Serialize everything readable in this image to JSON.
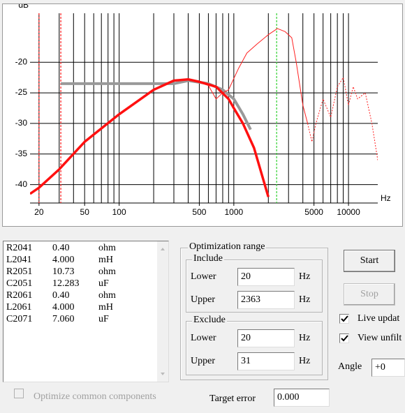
{
  "chart_data": {
    "type": "line",
    "xlabel": "Hz",
    "ylabel": "dB",
    "xlog": true,
    "xlim": [
      16.7,
      18000
    ],
    "ylim": [
      -43,
      -12
    ],
    "xticks": [
      20,
      50,
      100,
      500,
      1000,
      5000,
      10000
    ],
    "xgrid": [
      20,
      30,
      40,
      50,
      60,
      70,
      80,
      90,
      100,
      200,
      300,
      400,
      500,
      600,
      700,
      800,
      900,
      1000,
      2000,
      3000,
      4000,
      5000,
      6000,
      7000,
      8000,
      9000,
      10000
    ],
    "yticks": [
      -20,
      -25,
      -30,
      -35,
      -40
    ],
    "grid": true,
    "series": [
      {
        "color": "#999999",
        "width": 4,
        "dash": "none",
        "x": [
          31,
          100,
          200,
          300,
          400,
          600,
          800,
          1000,
          1200,
          1400
        ],
        "values": [
          -23.5,
          -23.5,
          -23.5,
          -23.5,
          -23,
          -23.5,
          -24.5,
          -26,
          -28.5,
          -31
        ]
      },
      {
        "color": "#ff2020",
        "width": 1,
        "dash": "none",
        "x": [
          500,
          600,
          700,
          800,
          900,
          1100,
          1300,
          1600,
          2000,
          2400,
          2800,
          3200,
          3500,
          4000,
          4400
        ],
        "values": [
          -23.3,
          -23.8,
          -26,
          -25,
          -24.5,
          -21,
          -18.5,
          -17,
          -15.5,
          -14.5,
          -15,
          -16,
          -20,
          -27,
          -30
        ]
      },
      {
        "color": "#ff2020",
        "width": 1,
        "dash": "2 2",
        "x": [
          4400,
          4800,
          5200,
          6000,
          7000,
          8000,
          9000,
          10000,
          11000,
          12000,
          14000,
          16000,
          18000
        ],
        "values": [
          -30,
          -33,
          -30,
          -26,
          -29,
          -24,
          -22.5,
          -27,
          -24,
          -26,
          -25,
          -30,
          -36
        ]
      },
      {
        "color": "#ff1010",
        "width": 3.5,
        "dash": "none",
        "x": [
          16.7,
          20,
          30,
          50,
          100,
          200,
          300,
          400,
          500,
          700,
          900,
          1000,
          1200,
          1500,
          2000
        ],
        "values": [
          -41.5,
          -40.5,
          -37.5,
          -33,
          -28.5,
          -24.5,
          -23,
          -22.8,
          -23.2,
          -24,
          -26,
          -27.5,
          -30,
          -34,
          -42
        ]
      }
    ],
    "markers": [
      {
        "source": "ui.optimization.exclude.lower.value",
        "color": "#ff2020"
      },
      {
        "source": "ui.optimization.exclude.upper.value",
        "color": "#ff2020"
      },
      {
        "source": "ui.optimization.include.upper.value",
        "color": "#30d030"
      }
    ]
  },
  "ui": {
    "components": [
      [
        "R2041",
        "0.40",
        "ohm"
      ],
      [
        "L2041",
        "4.000",
        "mH"
      ],
      [
        "R2051",
        "10.73",
        "ohm"
      ],
      [
        "C2051",
        "12.283",
        "uF"
      ],
      [
        "R2061",
        "0.40",
        "ohm"
      ],
      [
        "L2061",
        "4.000",
        "mH"
      ],
      [
        "C2071",
        "7.060",
        "uF"
      ]
    ],
    "optimization": {
      "title": "Optimization range",
      "include": {
        "title": "Include",
        "lower": {
          "label": "Lower",
          "value": "20",
          "unit": "Hz"
        },
        "upper": {
          "label": "Upper",
          "value": "2363",
          "unit": "Hz"
        }
      },
      "exclude": {
        "title": "Exclude",
        "lower": {
          "label": "Lower",
          "value": "20",
          "unit": "Hz"
        },
        "upper": {
          "label": "Upper",
          "value": "31",
          "unit": "Hz"
        }
      }
    },
    "start": "Start",
    "stop": "Stop",
    "live_update": {
      "label": "Live updat",
      "checked": true
    },
    "view_unfiltered": {
      "label": "View unfilt",
      "checked": true
    },
    "angle": {
      "label": "Angle",
      "value": "+0"
    },
    "optimize_common": {
      "label": "Optimize common components",
      "checked": false
    },
    "target_error": {
      "label": "Target error",
      "value": "0.000"
    }
  }
}
